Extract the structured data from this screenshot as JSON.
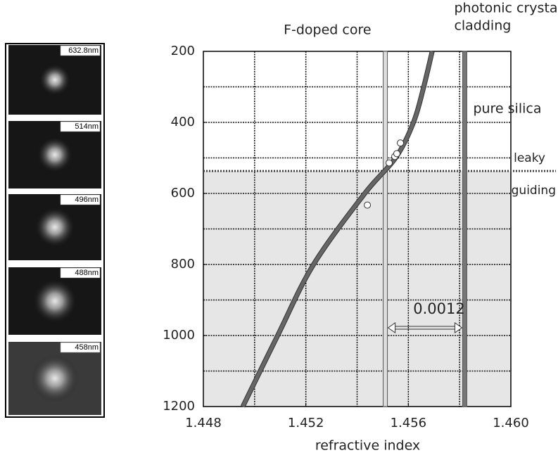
{
  "chart_data": {
    "type": "line",
    "x_label": "refractive index",
    "xlim": [
      1.448,
      1.46
    ],
    "xticks": [
      1.448,
      1.452,
      1.456,
      {
        "value": 1.46,
        "label": "1.460"
      }
    ],
    "ylim": [
      1200,
      200
    ],
    "yticks": [
      200,
      400,
      600,
      800,
      1000,
      1200
    ],
    "xgrid": [
      1.45,
      1.452,
      1.454,
      1.456,
      1.458
    ],
    "ygrid": [
      300,
      400,
      500,
      600,
      700,
      800,
      900,
      1000,
      1100
    ],
    "grid": true,
    "series": [
      {
        "color": "#666666",
        "x": [
          1.44954,
          1.4509,
          1.4523,
          1.4543,
          1.4555,
          1.4562,
          1.4566,
          1.45693
        ],
        "values": [
          1200,
          1000,
          800,
          600,
          500,
          400,
          300,
          200
        ]
      },
      {
        "color": "#ffffff",
        "x": [
          1.4544,
          1.45525,
          1.45547,
          1.45555,
          1.45569
        ],
        "values": [
          632.8,
          514,
          496,
          488,
          458
        ]
      }
    ],
    "vlines": [
      {
        "x": 1.4551,
        "label": "F-doped core",
        "color": "#dddddd"
      },
      {
        "x": 1.4582,
        "label": [
          "photonic crystal",
          "cladding"
        ],
        "color": "#777777"
      }
    ],
    "cladding_label": "pure silica",
    "boundary": {
      "value": 537,
      "above": "leaky",
      "below": "guiding",
      "shade": "#e6e6e6"
    },
    "difference_label": "0.0012",
    "images": [
      "632.8nm",
      "514nm",
      "496nm",
      "488nm",
      "458nm"
    ]
  }
}
